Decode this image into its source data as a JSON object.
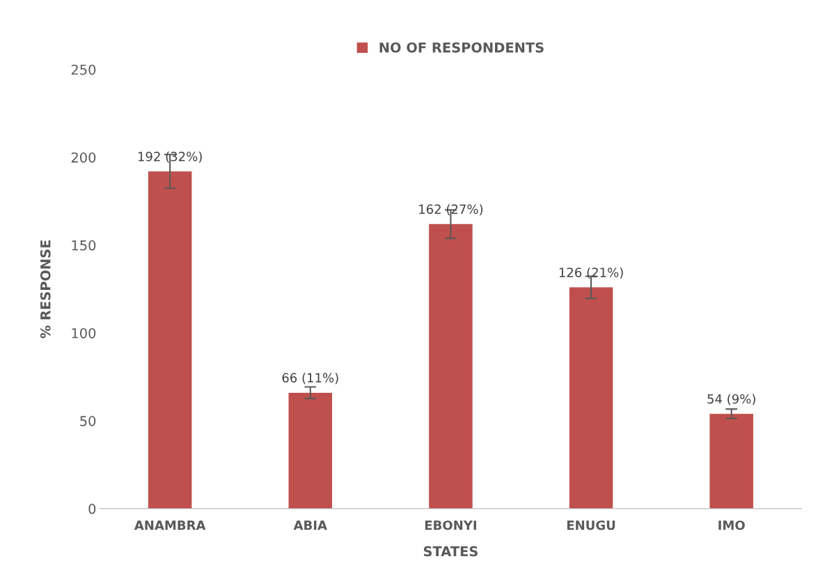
{
  "chart_data": {
    "type": "bar",
    "xlabel": "STATES",
    "ylabel": "% RESPONSE",
    "categories": [
      "ANAMBRA",
      "ABIA",
      "EBONYI",
      "ENUGU",
      "IMO"
    ],
    "series": [
      {
        "name": "NO OF RESPONDENTS",
        "color": "#c0504d",
        "values": [
          192,
          66,
          162,
          126,
          54
        ],
        "errors": [
          9.6,
          3.3,
          8.1,
          6.3,
          2.7
        ],
        "value_labels": [
          "192 (32%)",
          "66 (11%)",
          "162 (27%)",
          "126 (21%)",
          "54 (9%)"
        ]
      }
    ],
    "ylim": [
      0,
      250
    ],
    "yticks": [
      0,
      50,
      100,
      150,
      200,
      250
    ],
    "grid": false,
    "legend": "top"
  }
}
